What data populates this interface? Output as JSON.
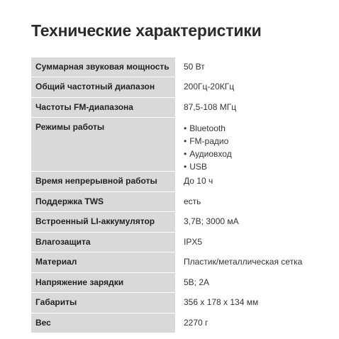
{
  "title": "Технические характеристики",
  "specs": [
    {
      "label": "Суммарная звуковая мощность",
      "value": "50 Вт"
    },
    {
      "label": "Общий частотный диапазон",
      "value": "200Гц-20КГц"
    },
    {
      "label": "Частоты FM-диапазона",
      "value": "87,5-108 МГц"
    },
    {
      "label": "Режимы работы",
      "values": [
        "Bluetooth",
        "FM-радио",
        "Аудиовход",
        "USB"
      ]
    },
    {
      "label": "Время непрерывной работы",
      "value": "До 10 ч"
    },
    {
      "label": "Поддержка TWS",
      "value": "есть"
    },
    {
      "label": "Встроенный LI-аккумулятор",
      "value": "3,7В; 3000 мА"
    },
    {
      "label": "Влагозащита",
      "value": "IPX5"
    },
    {
      "label": "Материал",
      "value": "Пластик/металлическая сетка"
    },
    {
      "label": "Напряжение зарядки",
      "value": "5В; 2А"
    },
    {
      "label": "Габариты",
      "value": "356 х 178 х 134 мм"
    },
    {
      "label": "Вес",
      "value": "2270 г"
    }
  ]
}
